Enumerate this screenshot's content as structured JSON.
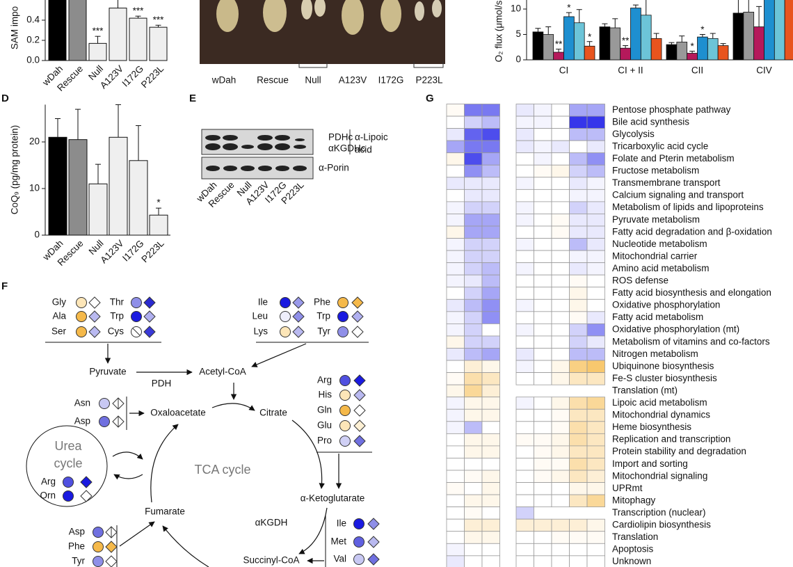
{
  "panel_labels": [
    "D",
    "E",
    "F",
    "G"
  ],
  "photo": {
    "labels": [
      "wDah",
      "Rescue",
      "Null",
      "A123V",
      "I172G",
      "P223L"
    ]
  },
  "blot": {
    "bands": [
      "PDHc",
      "αKGDHc"
    ],
    "antibody_lipoic": [
      "α-Lipoic",
      "acid"
    ],
    "antibody_porin": "α-Porin",
    "lanes": [
      "wDah",
      "Rescue",
      "Null",
      "A123V",
      "I172G",
      "P223L"
    ]
  },
  "diagram": {
    "nodes": [
      "Pyruvate",
      "Acetyl-CoA",
      "PDH",
      "Oxaloacetate",
      "Citrate",
      "α-Ketoglutarate",
      "Fumarate",
      "αKGDH",
      "Succinyl-CoA"
    ],
    "tca_label": "TCA cycle",
    "urea_label": [
      "Urea",
      "cycle"
    ],
    "groups": [
      [
        {
          "name": "Gly",
          "circle": "#fde6b8",
          "diamond": "#ffffff"
        },
        {
          "name": "Thr",
          "circle": "#8f8fe8",
          "diamond": "#2a2ad0"
        },
        {
          "name": "Ala",
          "circle": "#f5b94a",
          "diamond": "#b9b9f0"
        },
        {
          "name": "Trp",
          "circle": "#1a1ae0",
          "diamond": "#b0b0f0"
        },
        {
          "name": "Ser",
          "circle": "#f5b94a",
          "diamond": "#b9b9f0"
        },
        {
          "name": "Cys",
          "circle": null,
          "diamond": "#3a3ad8"
        }
      ],
      [
        {
          "name": "Ile",
          "circle": "#1a1ae0",
          "diamond": "#9a9aea"
        },
        {
          "name": "Phe",
          "circle": "#f5b94a",
          "diamond": "#f5b94a"
        },
        {
          "name": "Leu",
          "circle": "#eeeefc",
          "diamond": "#8f8fe8"
        },
        {
          "name": "Trp",
          "circle": "#1a1ae0",
          "diamond": "#b0b0f0"
        },
        {
          "name": "Lys",
          "circle": "#fde6b8",
          "diamond": "#b9b9f0"
        },
        {
          "name": "Tyr",
          "circle": "#8f8fe8",
          "diamond": "#ffffff"
        }
      ],
      [
        {
          "name": "Arg",
          "circle": "#5050e0",
          "diamond": "#1a1ae0"
        },
        {
          "name": "His",
          "circle": "#fde6b8",
          "diamond": "#b9b9f0"
        },
        {
          "name": "Gln",
          "circle": "#f5b94a",
          "diamond": "#ffffff"
        },
        {
          "name": "Glu",
          "circle": "#fde6b8",
          "diamond": "#fdf0d4"
        },
        {
          "name": "Pro",
          "circle": "#d0d0f5",
          "diamond": "#7070e0"
        }
      ],
      [
        {
          "name": "Asn",
          "circle": "#c8c8f3",
          "diamond": "half"
        },
        {
          "name": "Asp",
          "circle": "#7070e0",
          "diamond": "half"
        }
      ],
      [
        {
          "name": "Arg",
          "circle": "#5050e0",
          "diamond": "#1a1ae0"
        },
        {
          "name": "Orn",
          "circle": "#1a1ae0",
          "diamond": "#ffffff"
        }
      ],
      [
        {
          "name": "Ile",
          "circle": "#1a1ae0",
          "diamond": "#8f8fe8"
        },
        {
          "name": "Met",
          "circle": "#6060e0",
          "diamond": "#b9b9f0"
        },
        {
          "name": "Val",
          "circle": "#c8c8f3",
          "diamond": "#7070e0"
        }
      ],
      [
        {
          "name": "Asp",
          "circle": "#7070e0",
          "diamond": "half"
        },
        {
          "name": "Phe",
          "circle": "#f5b94a",
          "diamond": "#f5b94a"
        },
        {
          "name": "Tyr",
          "circle": "#8f8fe8",
          "diamond": "#ffffff"
        }
      ]
    ]
  },
  "chart_data": [
    {
      "type": "bar",
      "ylabel": "SAM impo",
      "categories": [
        "wDah",
        "Rescue",
        "Null",
        "A123V",
        "I172G",
        "P223L"
      ],
      "values": [
        0.62,
        0.62,
        0.17,
        0.52,
        0.42,
        0.33
      ],
      "errors": [
        0.05,
        0.05,
        0.07,
        0.09,
        0.02,
        0.02
      ],
      "colors": [
        "#000000",
        "#8c8c8c",
        "#efefef",
        "#efefef",
        "#efefef",
        "#efefef"
      ],
      "annotations": [
        null,
        null,
        "***",
        null,
        "***",
        "***"
      ],
      "ylim": [
        0,
        0.6
      ],
      "yticks": [
        {
          "value": 0,
          "label": "0.0"
        },
        {
          "value": 0.2,
          "label": "0.2"
        },
        {
          "value": 0.4,
          "label": "0.4"
        }
      ]
    },
    {
      "type": "grouped_bar",
      "ylabel": "O₂ flux (μmol/s",
      "categories": [
        "CI",
        "CI + II",
        "CII",
        "CIV"
      ],
      "series": [
        {
          "color": "#000000",
          "values": [
            5.5,
            6.5,
            3.0,
            9.2
          ],
          "errors": [
            0.7,
            0.6,
            0.4,
            3.0
          ],
          "annotations": [
            null,
            null,
            null,
            null
          ]
        },
        {
          "color": "#999999",
          "values": [
            5.0,
            6.3,
            3.5,
            9.4
          ],
          "errors": [
            1.5,
            1.8,
            1.2,
            3.0
          ],
          "annotations": [
            null,
            null,
            null,
            null
          ]
        },
        {
          "color": "#b5195b",
          "values": [
            1.5,
            2.3,
            1.3,
            6.5
          ],
          "errors": [
            0.6,
            0.5,
            0.4,
            4.0
          ],
          "annotations": [
            "**",
            "**",
            "*",
            null
          ]
        },
        {
          "color": "#1e8fd0",
          "values": [
            8.5,
            10.2,
            4.5,
            14
          ],
          "errors": [
            0.8,
            0.6,
            0.5,
            null
          ],
          "annotations": [
            "*",
            null,
            "*",
            null
          ]
        },
        {
          "color": "#6cc4d8",
          "values": [
            7.3,
            8.8,
            4.2,
            14
          ],
          "errors": [
            2.6,
            3.2,
            1.0,
            null
          ],
          "annotations": [
            null,
            null,
            null,
            null
          ]
        },
        {
          "color": "#e8541e",
          "values": [
            2.7,
            4.2,
            2.8,
            14
          ],
          "errors": [
            0.9,
            1.0,
            0.4,
            null
          ],
          "annotations": [
            "*",
            null,
            null,
            null
          ]
        }
      ],
      "ylim": [
        0,
        12
      ],
      "yticks": [
        0,
        5,
        10
      ]
    },
    {
      "type": "bar",
      "ylabel": "CoQ₉ (pg/mg protein)",
      "categories": [
        "wDah",
        "Rescue",
        "Null",
        "A123V",
        "I172G",
        "P223L"
      ],
      "values": [
        21,
        20.5,
        11,
        21,
        16,
        4.3
      ],
      "errors": [
        4,
        6.5,
        4.2,
        7,
        7.5,
        1.5
      ],
      "colors": [
        "#000000",
        "#8c8c8c",
        "#efefef",
        "#efefef",
        "#efefef",
        "#efefef"
      ],
      "annotations": [
        null,
        null,
        null,
        null,
        null,
        "*"
      ],
      "ylim": [
        0,
        28
      ],
      "yticks": [
        0,
        10,
        20
      ]
    },
    {
      "type": "heatmap",
      "negative_color": "#2020e8",
      "positive_color": "#f5b030",
      "rows": [
        "Pentose phosphate pathway",
        "Bile acid synthesis",
        "Glycolysis",
        "Tricarboxylic acid cycle",
        "Folate and Pterin metabolism",
        "Fructose metabolism",
        "Transmembrane transport",
        "Calcium signaling and transport",
        "Metabolism of lipids and lipoproteins",
        "Pyruvate metabolism",
        "Fatty acid degradation and β-oxidation",
        "Nucleotide metabolism",
        "Mitochondrial carrier",
        "Amino acid metabolism",
        "ROS defense",
        "Fatty acid biosynthesis and elongation",
        "Oxidative phosphorylation",
        "Fatty acid metabolism",
        "Oxidative phosphorylation (mt)",
        "Metabolism of vitamins and co-factors",
        "Nitrogen metabolism",
        "Ubiquinone biosynthesis",
        "Fe-S cluster biosynthesis",
        "Translation (mt)",
        "Lipoic acid metabolism",
        "Mitochondrial dynamics",
        "Heme biosynthesis",
        "Replication and transcription",
        "Protein stability and degradation",
        "Import and sorting",
        "Mitochondrial signaling",
        "UPRmt",
        "Mitophagy",
        "Transcription (nuclear)",
        "Cardiolipin biosynthesis",
        "Translation",
        "Apoptosis",
        "Unknown"
      ],
      "blocks": [
        {
          "values": [
            [
              0.05,
              -0.6,
              -0.6
            ],
            [
              0,
              -0.2,
              -0.3
            ],
            [
              -0.1,
              -0.7,
              -0.8
            ],
            [
              -0.4,
              -0.6,
              -0.6
            ],
            [
              0.1,
              -0.8,
              -0.4
            ],
            [
              0,
              -0.5,
              -0.3
            ],
            [
              -0.1,
              -0.1,
              -0.1
            ],
            [
              0,
              -0.1,
              -0.1
            ],
            [
              -0.05,
              -0.2,
              -0.2
            ],
            [
              -0.05,
              -0.4,
              -0.4
            ],
            [
              0.1,
              -0.4,
              -0.4
            ],
            [
              -0.05,
              -0.2,
              -0.2
            ],
            [
              -0.05,
              -0.2,
              -0.2
            ],
            [
              -0.05,
              -0.2,
              -0.3
            ],
            [
              -0.05,
              -0.1,
              -0.3
            ],
            [
              0,
              -0.2,
              -0.4
            ],
            [
              -0.1,
              -0.3,
              -0.5
            ],
            [
              -0.05,
              -0.2,
              -0.5
            ],
            [
              -0.05,
              -0.2,
              0
            ],
            [
              0.1,
              -0.2,
              -0.2
            ],
            [
              -0.1,
              -0.3,
              -0.4
            ],
            [
              0,
              0.2,
              0.1
            ],
            [
              0.05,
              0.4,
              0.3
            ],
            [
              0.1,
              0.5,
              0.2
            ],
            [
              -0.05,
              0.1,
              0.1
            ],
            [
              -0.05,
              0.1,
              0.1
            ],
            [
              -0.05,
              -0.3,
              0
            ],
            [
              0,
              0.1,
              0.1
            ],
            [
              0,
              0.1,
              0.1
            ],
            [
              0,
              0,
              0
            ],
            [
              0,
              0.05,
              0.1
            ],
            [
              0.05,
              0,
              0.1
            ],
            [
              0,
              0.1,
              0.1
            ],
            [
              0,
              0.05,
              0
            ],
            [
              0,
              0.2,
              0.2
            ],
            [
              0,
              0.1,
              0.1
            ],
            [
              -0.05,
              0,
              0
            ],
            [
              -0.1,
              0,
              0
            ]
          ]
        },
        {
          "values": [
            [
              -0.1,
              -0.05,
              0,
              -0.4,
              -0.4
            ],
            [
              -0.05,
              -0.05,
              0,
              -0.9,
              -0.9
            ],
            [
              -0.1,
              0,
              0,
              -0.3,
              -0.3
            ],
            [
              -0.1,
              -0.05,
              -0.1,
              0,
              -0.1
            ],
            [
              0,
              -0.05,
              0,
              -0.3,
              -0.5
            ],
            [
              0,
              0.05,
              0.1,
              -0.2,
              -0.3
            ],
            [
              -0.05,
              0,
              0,
              -0.1,
              -0.05
            ],
            [
              0,
              0,
              0,
              -0.05,
              -0.05
            ],
            [
              -0.05,
              0,
              0,
              -0.2,
              -0.1
            ],
            [
              -0.05,
              0,
              0.05,
              -0.1,
              -0.1
            ],
            [
              0,
              0,
              0.05,
              -0.1,
              -0.1
            ],
            [
              -0.05,
              0,
              0,
              -0.3,
              -0.1
            ],
            [
              0,
              0,
              0,
              -0.05,
              -0.05
            ],
            [
              -0.05,
              0,
              0,
              -0.1,
              -0.05
            ],
            [
              0,
              0,
              0,
              0.05,
              0
            ],
            [
              0,
              0,
              0,
              0.1,
              0
            ],
            [
              -0.05,
              0,
              0,
              0.1,
              0
            ],
            [
              0,
              0,
              0,
              0.05,
              -0.1
            ],
            [
              -0.05,
              0,
              0,
              -0.2,
              -0.5
            ],
            [
              0,
              0,
              0,
              -0.2,
              -0.1
            ],
            [
              -0.1,
              0,
              0,
              -0.3,
              -0.3
            ],
            [
              -0.05,
              0,
              0.1,
              0.6,
              0.7
            ],
            [
              0,
              0,
              0.1,
              0.3,
              0.3
            ],
            [
              null,
              null,
              null,
              null,
              null
            ],
            [
              -0.05,
              0,
              0.1,
              0.4,
              0.5
            ],
            [
              0,
              0,
              0.05,
              0.3,
              0.3
            ],
            [
              0,
              0,
              0.05,
              0.4,
              0.3
            ],
            [
              0.05,
              0.05,
              0.1,
              0.4,
              0.3
            ],
            [
              0,
              0.05,
              0.1,
              0.3,
              0.3
            ],
            [
              0,
              0.05,
              0.05,
              0.4,
              0.3
            ],
            [
              0,
              0.05,
              0.1,
              0.3,
              0.2
            ],
            [
              0,
              0,
              0,
              0.1,
              0.1
            ],
            [
              0,
              0,
              0,
              0.3,
              0.5
            ],
            [
              -0.2,
              null,
              null,
              null,
              null
            ],
            [
              0.2,
              0.2,
              0.2,
              0.2,
              0.1
            ],
            [
              0,
              0,
              0.05,
              0.05,
              0.05
            ],
            [
              0,
              0,
              0,
              0,
              0
            ],
            [
              0,
              0,
              0,
              0,
              0
            ]
          ]
        }
      ]
    }
  ]
}
